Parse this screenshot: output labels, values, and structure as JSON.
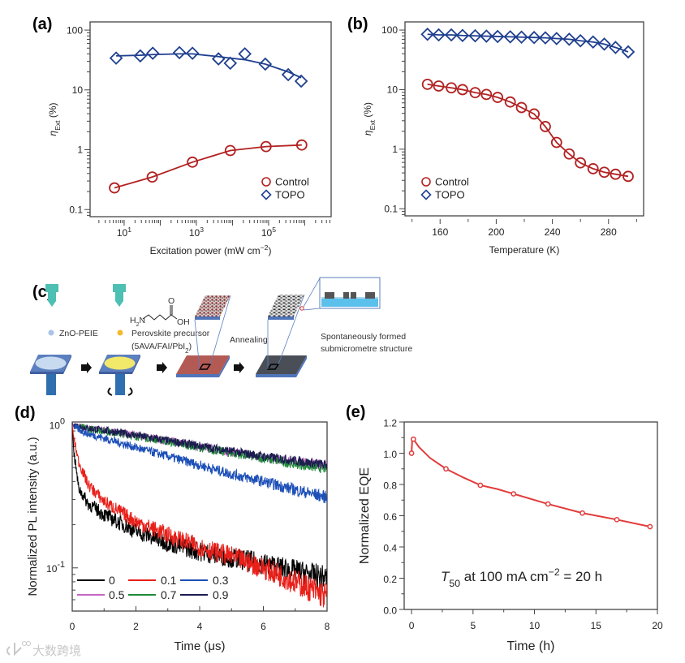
{
  "panel_labels": {
    "a": "(a)",
    "b": "(b)",
    "c": "(c)",
    "d": "(d)",
    "e": "(e)"
  },
  "colors": {
    "control": "#b22222",
    "topo": "#1f3f8f",
    "eqe": "#e23b3b"
  },
  "diagram_c": {
    "zno_label": "ZnO-PEIE",
    "precursor_label": "Perovskite precursor",
    "precursor_formula_main": "(5AVA/FAI/PbI",
    "precursor_formula_sub": "2",
    "precursor_formula_end": ")",
    "molecule_h2n": "H",
    "molecule_h2n_sub": "2",
    "molecule_n": "N",
    "molecule_oh": "OH",
    "molecule_o": "O",
    "annealing_label": "Annealing",
    "structure_label_1": "Spontaneously formed",
    "structure_label_2": "submicrometre structure"
  },
  "watermark": "大数跨境",
  "chart_data": [
    {
      "panel": "(a)",
      "type": "scatter",
      "xscale": "log",
      "yscale": "log",
      "xlim": [
        1.14,
        5400000.0
      ],
      "ylim": [
        0.076,
        137
      ],
      "xticks": [
        {
          "v": 10,
          "base": "10",
          "exp": "1"
        },
        {
          "v": 1000,
          "base": "10",
          "exp": "3"
        },
        {
          "v": 100000,
          "base": "10",
          "exp": "5"
        }
      ],
      "yticks": [
        {
          "v": 0.1,
          "label": "0.1"
        },
        {
          "v": 1,
          "label": "1"
        },
        {
          "v": 10,
          "label": "10"
        },
        {
          "v": 100,
          "label": "100"
        }
      ],
      "xlabel": [
        {
          "t": "Excitation power (mW cm"
        },
        {
          "t": "−2",
          "sup": true
        },
        {
          "t": ")"
        }
      ],
      "ylabel": [
        {
          "t": "η",
          "i": true
        },
        {
          "t": "Ext",
          "sub": true
        },
        {
          "t": " (%)"
        }
      ],
      "legend": "bottom-right",
      "series": [
        {
          "name": "Control",
          "marker": "circle",
          "color": "#b22222",
          "x": [
            5.4,
            60,
            780,
            8700,
            85000,
            830000
          ],
          "y": [
            0.23,
            0.35,
            0.62,
            0.97,
            1.13,
            1.2
          ]
        },
        {
          "name": "TOPO",
          "marker": "diamond",
          "color": "#1f3f8f",
          "x": [
            6,
            28,
            62,
            340,
            780,
            4100,
            8700,
            22000,
            81000,
            350000,
            800000
          ],
          "y": [
            34,
            37,
            41,
            42,
            41,
            33,
            28,
            40,
            27,
            18,
            14
          ],
          "fit_y": [
            37,
            38,
            39,
            40,
            40,
            36,
            34,
            32,
            27,
            20,
            16
          ]
        }
      ]
    },
    {
      "panel": "(b)",
      "type": "line",
      "xscale": "linear",
      "yscale": "log",
      "xlim": [
        135,
        305
      ],
      "ylim": [
        0.076,
        137
      ],
      "xticks": [
        {
          "v": 160,
          "label": "160"
        },
        {
          "v": 200,
          "label": "200"
        },
        {
          "v": 240,
          "label": "240"
        },
        {
          "v": 280,
          "label": "280"
        }
      ],
      "yticks": [
        {
          "v": 0.1,
          "label": "0.1"
        },
        {
          "v": 1,
          "label": "1"
        },
        {
          "v": 10,
          "label": "10"
        },
        {
          "v": 100,
          "label": "100"
        }
      ],
      "xlabel": [
        {
          "t": "Temperature (K)"
        }
      ],
      "ylabel": [
        {
          "t": "η",
          "i": true
        },
        {
          "t": "Ext",
          "sub": true
        },
        {
          "t": " (%)"
        }
      ],
      "legend": "bottom-left",
      "series": [
        {
          "name": "Control",
          "marker": "circle",
          "color": "#b22222",
          "x": [
            151,
            159,
            168,
            176,
            185,
            193,
            201,
            210,
            218,
            227,
            235,
            243,
            252,
            260,
            269,
            277,
            285,
            294
          ],
          "y": [
            12.3,
            11.5,
            10.7,
            10,
            8.9,
            8.3,
            7.4,
            6.2,
            5.0,
            3.9,
            2.4,
            1.3,
            0.83,
            0.59,
            0.47,
            0.41,
            0.38,
            0.35
          ]
        },
        {
          "name": "TOPO",
          "marker": "diamond",
          "color": "#1f3f8f",
          "x": [
            151,
            159,
            168,
            176,
            185,
            193,
            201,
            210,
            218,
            227,
            235,
            243,
            252,
            260,
            269,
            277,
            285,
            294
          ],
          "y": [
            85,
            83,
            83,
            81,
            80,
            79,
            78,
            77,
            76,
            75,
            74,
            72,
            70,
            66,
            63,
            58,
            51,
            43
          ]
        }
      ]
    },
    {
      "panel": "(d)",
      "type": "line",
      "xscale": "linear",
      "yscale": "log",
      "xlim": [
        0,
        8
      ],
      "ylim": [
        0.05,
        1.04
      ],
      "xticks": [
        {
          "v": 0,
          "label": "0"
        },
        {
          "v": 2,
          "label": "2"
        },
        {
          "v": 4,
          "label": "4"
        },
        {
          "v": 6,
          "label": "6"
        },
        {
          "v": 8,
          "label": "8"
        }
      ],
      "yticks": [
        {
          "v": 0.1,
          "base": "10",
          "exp": "-1"
        },
        {
          "v": 1,
          "base": "10",
          "exp": "0"
        }
      ],
      "xlabel": [
        {
          "t": "Time ("
        },
        {
          "t": "μ"
        },
        {
          "t": "s)"
        }
      ],
      "ylabel": [
        {
          "t": "Normalized PL intensity (a.u.)"
        }
      ],
      "legend": "bottom-left",
      "x": [
        0,
        0.05,
        0.2,
        0.5,
        1,
        2,
        3,
        4,
        5,
        6,
        7,
        8
      ],
      "series": [
        {
          "name": "0",
          "color": "#000000",
          "y": [
            1.0,
            0.65,
            0.36,
            0.28,
            0.235,
            0.18,
            0.15,
            0.13,
            0.118,
            0.107,
            0.095,
            0.085
          ]
        },
        {
          "name": "0.1",
          "color": "#e8201a",
          "y": [
            1.0,
            0.8,
            0.55,
            0.38,
            0.29,
            0.21,
            0.17,
            0.14,
            0.12,
            0.1,
            0.08,
            0.063
          ]
        },
        {
          "name": "0.3",
          "color": "#1d4fb8",
          "y": [
            1.0,
            0.97,
            0.92,
            0.86,
            0.8,
            0.69,
            0.6,
            0.52,
            0.45,
            0.4,
            0.35,
            0.31
          ]
        },
        {
          "name": "0.5",
          "color": "#c466c4",
          "y": [
            1.0,
            0.99,
            0.97,
            0.94,
            0.91,
            0.84,
            0.77,
            0.7,
            0.64,
            0.59,
            0.55,
            0.52
          ]
        },
        {
          "name": "0.7",
          "color": "#1f8a3a",
          "y": [
            1.0,
            0.99,
            0.96,
            0.93,
            0.9,
            0.83,
            0.76,
            0.69,
            0.63,
            0.58,
            0.53,
            0.49
          ]
        },
        {
          "name": "0.9",
          "color": "#1c1c50",
          "y": [
            1.0,
            0.99,
            0.97,
            0.94,
            0.91,
            0.84,
            0.77,
            0.71,
            0.65,
            0.6,
            0.56,
            0.52
          ]
        }
      ]
    },
    {
      "panel": "(e)",
      "type": "line",
      "xscale": "linear",
      "yscale": "linear",
      "xlim": [
        -0.6,
        20
      ],
      "ylim": [
        0,
        1.2
      ],
      "xticks": [
        {
          "v": 0,
          "label": "0"
        },
        {
          "v": 5,
          "label": "5"
        },
        {
          "v": 10,
          "label": "10"
        },
        {
          "v": 15,
          "label": "15"
        },
        {
          "v": 20,
          "label": "20"
        }
      ],
      "yticks": [
        {
          "v": 0,
          "label": "0.0"
        },
        {
          "v": 0.2,
          "label": "0.2"
        },
        {
          "v": 0.4,
          "label": "0.4"
        },
        {
          "v": 0.6,
          "label": "0.6"
        },
        {
          "v": 0.8,
          "label": "0.8"
        },
        {
          "v": 1.0,
          "label": "1.0"
        },
        {
          "v": 1.2,
          "label": "1.2"
        }
      ],
      "xlabel": [
        {
          "t": "Time (h)"
        }
      ],
      "ylabel": [
        {
          "t": "Normalized EQE"
        }
      ],
      "annotation": [
        {
          "t": "T",
          "i": true
        },
        {
          "t": "50",
          "sub": true
        },
        {
          "t": " at 100 mA cm"
        },
        {
          "t": "−2",
          "sup": true
        },
        {
          "t": " = 20 h"
        }
      ],
      "series": [
        {
          "name": "Normalized EQE",
          "color": "#e23b3b",
          "curve_x": [
            0,
            0.05,
            0.15,
            0.6,
            1.5,
            2.8,
            4.2,
            5.6,
            7,
            8.3,
            11.1,
            13.9,
            16.7,
            19.4
          ],
          "curve_y": [
            1.0,
            1.08,
            1.09,
            1.04,
            0.97,
            0.9,
            0.845,
            0.795,
            0.77,
            0.74,
            0.675,
            0.617,
            0.575,
            0.53
          ],
          "marker_x": [
            0,
            0.15,
            2.8,
            5.6,
            8.3,
            11.1,
            13.9,
            16.7,
            19.4
          ],
          "marker_y": [
            1.0,
            1.09,
            0.9,
            0.795,
            0.74,
            0.675,
            0.617,
            0.575,
            0.53
          ]
        }
      ]
    }
  ]
}
